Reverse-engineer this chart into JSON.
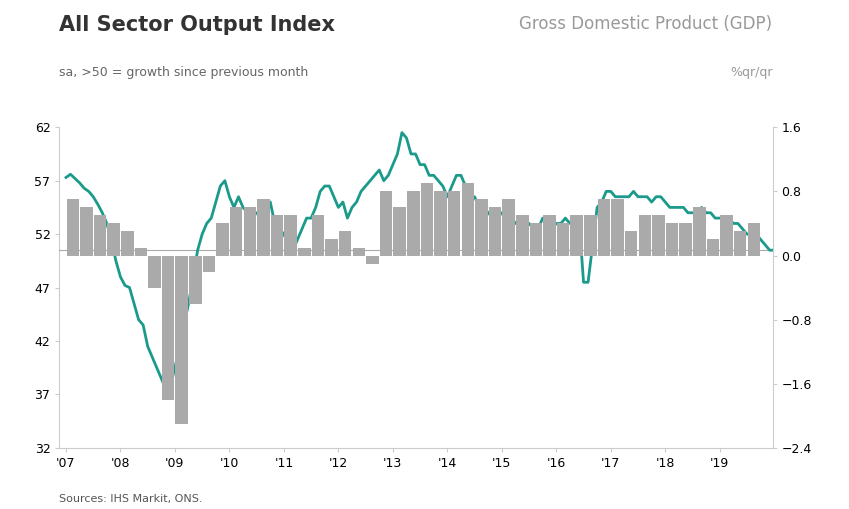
{
  "title_left": "All Sector Output Index",
  "title_right": "Gross Domestic Product (GDP)",
  "subtitle_left": "sa, >50 = growth since previous month",
  "subtitle_right": "%qr/qr",
  "source": "Sources: IHS Markit, ONS.",
  "line_color": "#1a9a8a",
  "bar_color": "#aaaaaa",
  "hline_color": "#aaaaaa",
  "left_ylim": [
    32,
    62
  ],
  "right_ylim": [
    -2.4,
    1.6
  ],
  "left_yticks": [
    32,
    37,
    42,
    47,
    52,
    57,
    62
  ],
  "right_yticks": [
    -2.4,
    -1.6,
    -0.8,
    0.0,
    0.8,
    1.6
  ],
  "hline_y": 50.5,
  "pmi_data": [
    57.3,
    57.6,
    57.2,
    56.8,
    56.3,
    56.0,
    55.5,
    54.8,
    54.0,
    53.0,
    51.5,
    49.5,
    48.0,
    47.2,
    47.0,
    45.5,
    44.0,
    43.5,
    41.5,
    40.5,
    39.5,
    38.5,
    37.5,
    37.8,
    39.5,
    41.5,
    43.5,
    45.5,
    48.0,
    50.5,
    52.0,
    53.0,
    53.5,
    55.0,
    56.5,
    57.0,
    55.5,
    54.5,
    55.5,
    54.5,
    54.0,
    53.5,
    54.0,
    54.0,
    53.5,
    55.0,
    53.0,
    52.5,
    52.0,
    51.0,
    50.5,
    51.5,
    52.5,
    53.5,
    53.5,
    54.5,
    56.0,
    56.5,
    56.5,
    55.5,
    54.5,
    55.0,
    53.5,
    54.5,
    55.0,
    56.0,
    56.5,
    57.0,
    57.5,
    58.0,
    57.0,
    57.5,
    58.5,
    59.5,
    61.5,
    61.0,
    59.5,
    59.5,
    58.5,
    58.5,
    57.5,
    57.5,
    57.0,
    56.5,
    55.5,
    56.5,
    57.5,
    57.5,
    56.5,
    55.0,
    55.5,
    54.5,
    54.5,
    54.0,
    53.5,
    53.5,
    54.0,
    54.0,
    53.5,
    53.0,
    53.5,
    53.0,
    53.0,
    52.5,
    52.5,
    53.5,
    53.5,
    52.5,
    53.0,
    53.0,
    53.5,
    53.0,
    53.5,
    53.5,
    47.5,
    47.5,
    51.0,
    54.5,
    55.0,
    56.0,
    56.0,
    55.5,
    55.5,
    55.5,
    55.5,
    56.0,
    55.5,
    55.5,
    55.5,
    55.0,
    55.5,
    55.5,
    55.0,
    54.5,
    54.5,
    54.5,
    54.5,
    54.0,
    54.0,
    54.0,
    54.5,
    54.0,
    54.0,
    53.5,
    53.5,
    53.5,
    53.5,
    53.0,
    53.0,
    52.5,
    52.0,
    52.0,
    52.0,
    51.5,
    51.0,
    50.5,
    50.5,
    50.5,
    50.5,
    50.5,
    50.5,
    50.5,
    50.5,
    50.2,
    50.2,
    50.5,
    50.2,
    50.2
  ],
  "gdp_quarters": [
    2007.125,
    2007.375,
    2007.625,
    2007.875,
    2008.125,
    2008.375,
    2008.625,
    2008.875,
    2009.125,
    2009.375,
    2009.625,
    2009.875,
    2010.125,
    2010.375,
    2010.625,
    2010.875,
    2011.125,
    2011.375,
    2011.625,
    2011.875,
    2012.125,
    2012.375,
    2012.625,
    2012.875,
    2013.125,
    2013.375,
    2013.625,
    2013.875,
    2014.125,
    2014.375,
    2014.625,
    2014.875,
    2015.125,
    2015.375,
    2015.625,
    2015.875,
    2016.125,
    2016.375,
    2016.625,
    2016.875,
    2017.125,
    2017.375,
    2017.625,
    2017.875,
    2018.125,
    2018.375,
    2018.625,
    2018.875,
    2019.125,
    2019.375,
    2019.625
  ],
  "gdp_values": [
    0.7,
    0.6,
    0.5,
    0.4,
    0.3,
    0.1,
    -0.4,
    -1.8,
    -2.1,
    -0.6,
    -0.2,
    0.4,
    0.6,
    0.6,
    0.7,
    0.5,
    0.5,
    0.1,
    0.5,
    0.2,
    0.3,
    0.1,
    -0.1,
    0.8,
    0.6,
    0.8,
    0.9,
    0.8,
    0.8,
    0.9,
    0.7,
    0.6,
    0.7,
    0.5,
    0.4,
    0.5,
    0.4,
    0.5,
    0.5,
    0.7,
    0.7,
    0.3,
    0.5,
    0.5,
    0.4,
    0.4,
    0.6,
    0.2,
    0.5,
    0.3,
    0.4
  ],
  "background_color": "#ffffff",
  "spine_color": "#cccccc",
  "figsize": [
    8.49,
    5.09
  ],
  "dpi": 100
}
